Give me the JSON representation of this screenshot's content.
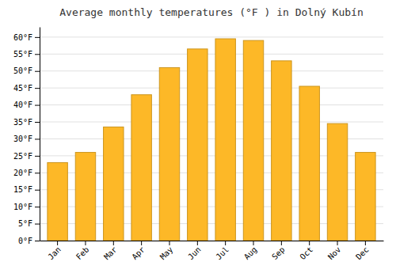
{
  "chart_data": {
    "type": "bar",
    "title": "Average monthly temperatures (°F ) in Dolný Kubín",
    "categories": [
      "Jan",
      "Feb",
      "Mar",
      "Apr",
      "May",
      "Jun",
      "Jul",
      "Aug",
      "Sep",
      "Oct",
      "Nov",
      "Dec"
    ],
    "values": [
      23,
      26,
      33.5,
      43,
      51,
      56.5,
      59.5,
      59,
      53,
      45.5,
      34.5,
      26
    ],
    "color": "#FDB827",
    "ylim": [
      0,
      63
    ],
    "yticks": [
      {
        "value": 0,
        "label": "0°F"
      },
      {
        "value": 5,
        "label": "5°F"
      },
      {
        "value": 10,
        "label": "10°F"
      },
      {
        "value": 15,
        "label": "15°F"
      },
      {
        "value": 20,
        "label": "20°F"
      },
      {
        "value": 25,
        "label": "25°F"
      },
      {
        "value": 30,
        "label": "30°F"
      },
      {
        "value": 35,
        "label": "35°F"
      },
      {
        "value": 40,
        "label": "40°F"
      },
      {
        "value": 45,
        "label": "45°F"
      },
      {
        "value": 50,
        "label": "50°F"
      },
      {
        "value": 55,
        "label": "55°F"
      },
      {
        "value": 60,
        "label": "60°F"
      }
    ],
    "grid": true
  }
}
